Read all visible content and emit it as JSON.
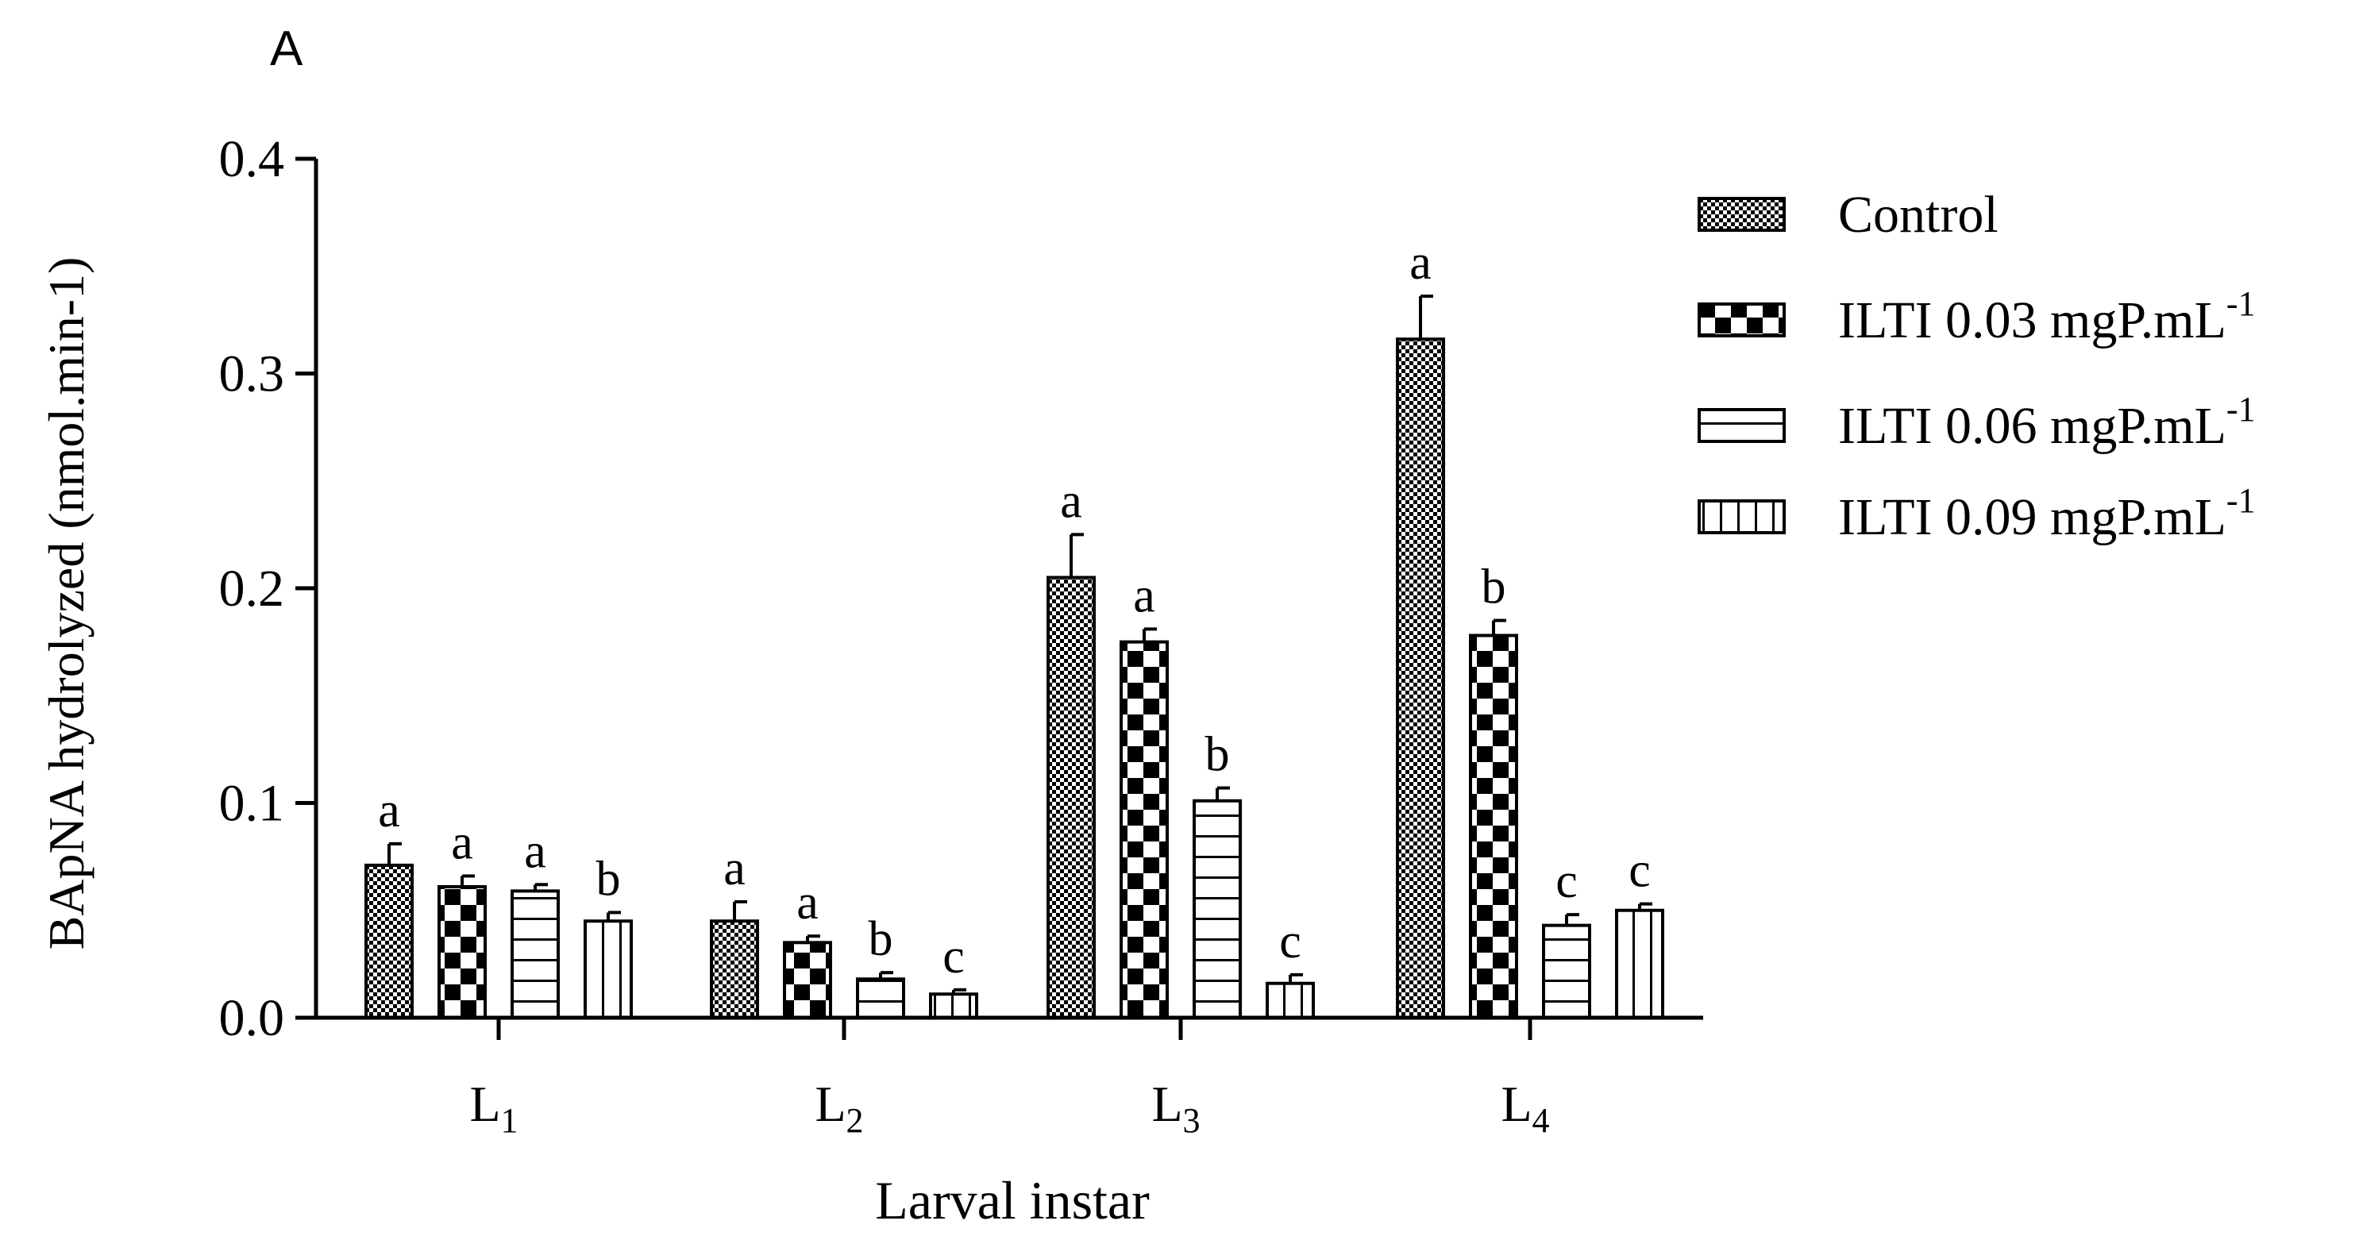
{
  "panel_label": "A",
  "chart_data": {
    "type": "bar",
    "title": "",
    "xlabel": "Larval instar",
    "ylabel": "BApNA hydrolyzed (nmol.min-1)",
    "ylim": [
      0,
      0.4
    ],
    "yticks": [
      "0.0",
      "0.1",
      "0.2",
      "0.3",
      "0.4"
    ],
    "categories": [
      {
        "base": "L",
        "sub": "1"
      },
      {
        "base": "L",
        "sub": "2"
      },
      {
        "base": "L",
        "sub": "3"
      },
      {
        "base": "L",
        "sub": "4"
      }
    ],
    "legend_position": "right",
    "grid": false,
    "series": [
      {
        "name": "Control",
        "pattern": "dots",
        "values": [
          0.071,
          0.045,
          0.205,
          0.316
        ],
        "errors": [
          0.01,
          0.009,
          0.02,
          0.02
        ],
        "letters": [
          "a",
          "a",
          "a",
          "a"
        ]
      },
      {
        "name": "ILTI 0.03 mgP.mL",
        "sup": "-1",
        "pattern": "checker",
        "values": [
          0.061,
          0.035,
          0.175,
          0.178
        ],
        "errors": [
          0.005,
          0.003,
          0.006,
          0.007
        ],
        "letters": [
          "a",
          "a",
          "a",
          "b"
        ]
      },
      {
        "name": "ILTI 0.06 mgP.mL",
        "sup": "-1",
        "pattern": "hlines",
        "values": [
          0.059,
          0.018,
          0.101,
          0.043
        ],
        "errors": [
          0.003,
          0.003,
          0.006,
          0.005
        ],
        "letters": [
          "a",
          "b",
          "b",
          "c"
        ]
      },
      {
        "name": "ILTI 0.09 mgP.mL",
        "sup": "-1",
        "pattern": "vlines",
        "values": [
          0.045,
          0.011,
          0.016,
          0.05
        ],
        "errors": [
          0.004,
          0.002,
          0.004,
          0.003
        ],
        "letters": [
          "b",
          "c",
          "c",
          "c"
        ]
      }
    ]
  }
}
